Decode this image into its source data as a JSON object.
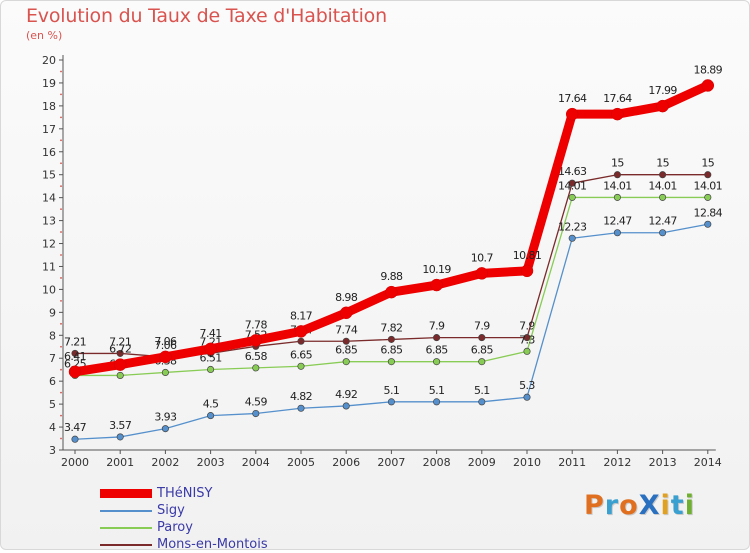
{
  "title": "Evolution du Taux de Taxe d'Habitation",
  "subtitle": "(en %)",
  "brand": "ProXiti",
  "chart_data": {
    "type": "line",
    "title": "Evolution du Taux de Taxe d'Habitation",
    "ylabel": "(en %)",
    "x": [
      "2000",
      "2001",
      "2002",
      "2003",
      "2004",
      "2005",
      "2006",
      "2007",
      "2008",
      "2009",
      "2010",
      "2011",
      "2012",
      "2013",
      "2014"
    ],
    "ylim": [
      3,
      20
    ],
    "yticks": [
      "3",
      "4",
      "5",
      "6",
      "7",
      "8",
      "9",
      "10",
      "11",
      "12",
      "13",
      "14",
      "15",
      "16",
      "17",
      "18",
      "19",
      "20"
    ],
    "grid": false,
    "legend_position": "bottom-left",
    "series": [
      {
        "name": "Mons-en-Montois",
        "color": "#7a2a2a",
        "values": [
          7.21,
          7.21,
          7.06,
          7.21,
          7.52,
          7.74,
          7.74,
          7.82,
          7.9,
          7.9,
          7.9,
          14.63,
          15,
          15,
          15
        ],
        "labels": [
          "7.21",
          "7.21",
          "7.06",
          "7.21",
          "7.52",
          "7.74",
          "7.74",
          "7.82",
          "7.9",
          "7.9",
          "7.9",
          "14.63",
          "15",
          "15",
          "15"
        ]
      },
      {
        "name": "Paroy",
        "color": "#88cc55",
        "values": [
          6.25,
          6.25,
          6.38,
          6.51,
          6.58,
          6.65,
          6.85,
          6.85,
          6.85,
          6.85,
          7.3,
          14.01,
          14.01,
          14.01,
          14.01
        ],
        "labels": [
          "6.25",
          "6.25",
          "6.38",
          "6.51",
          "6.58",
          "6.65",
          "6.85",
          "6.85",
          "6.85",
          "6.85",
          "7.3",
          "14.01",
          "14.01",
          "14.01",
          "14.01"
        ]
      },
      {
        "name": "Sigy",
        "color": "#5590cc",
        "values": [
          3.47,
          3.57,
          3.93,
          4.5,
          4.59,
          4.82,
          4.92,
          5.1,
          5.1,
          5.1,
          5.3,
          12.23,
          12.47,
          12.47,
          12.84
        ],
        "labels": [
          "3.47",
          "3.57",
          "3.93",
          "4.5",
          "4.59",
          "4.82",
          "4.92",
          "5.1",
          "5.1",
          "5.1",
          "5.3",
          "12.23",
          "12.47",
          "12.47",
          "12.84"
        ]
      },
      {
        "name": "THéNISY",
        "color": "#ee0000",
        "values": [
          6.41,
          6.72,
          7.06,
          7.41,
          7.78,
          8.17,
          8.98,
          9.88,
          10.19,
          10.7,
          10.81,
          17.64,
          17.64,
          17.99,
          18.89
        ],
        "labels": [
          "6.41",
          "6.72",
          "7.06",
          "7.41",
          "7.78",
          "8.17",
          "8.98",
          "9.88",
          "10.19",
          "10.7",
          "10.81",
          "17.64",
          "17.64",
          "17.99",
          "18.89"
        ]
      }
    ],
    "legend": [
      "THéNISY",
      "Sigy",
      "Paroy",
      "Mons-en-Montois"
    ]
  },
  "colors": {
    "title": "#d9534f",
    "axis": "#555555",
    "brand_letters": [
      "#e07020",
      "#3aa0d0",
      "#e07020",
      "#2a70c0",
      "#e0a020",
      "#3aa0d0",
      "#70b030"
    ]
  }
}
